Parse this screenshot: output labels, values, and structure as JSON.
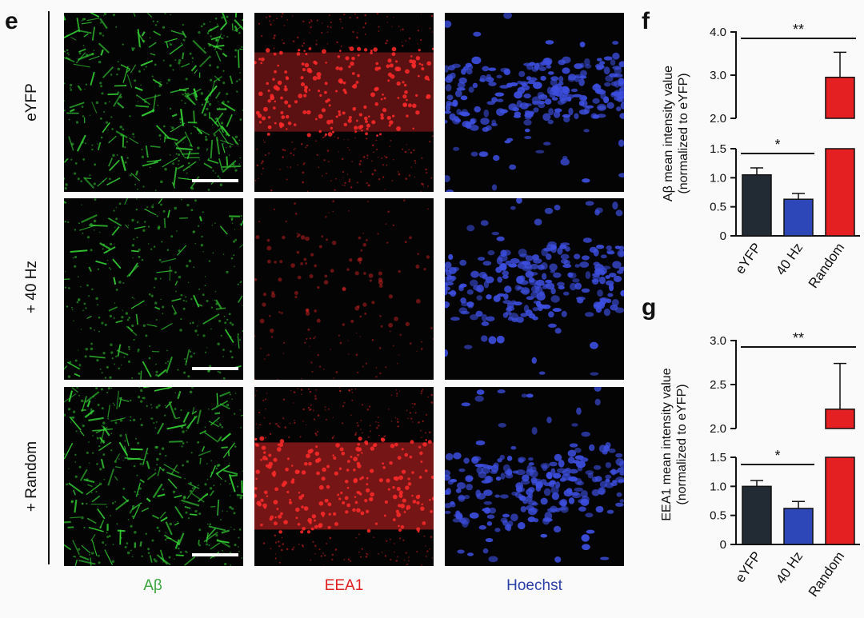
{
  "panel_labels": {
    "e": "e",
    "f": "f",
    "g": "g"
  },
  "rows": [
    "eYFP",
    "+ 40 Hz",
    "+ Random"
  ],
  "columns": [
    {
      "name": "Aβ",
      "color": "#3aa53a"
    },
    {
      "name": "EEA1",
      "color": "#e02020"
    },
    {
      "name": "Hoechst",
      "color": "#2b3fa8"
    }
  ],
  "image_colors": {
    "green": "#35d435",
    "red": "#ff2a2a",
    "blue": "#3d4fe0"
  },
  "chart_data": [
    {
      "type": "bar",
      "panel": "f",
      "ylabel_line1": "Aβ mean intensity value",
      "ylabel_line2": "(normalized to eYFP)",
      "categories": [
        "eYFP",
        "40 Hz",
        "Random"
      ],
      "values": [
        1.05,
        0.63,
        2.95
      ],
      "errors": [
        0.12,
        0.1,
        0.58
      ],
      "colors": [
        "#222a33",
        "#2e47b8",
        "#e42023"
      ],
      "axis_break": {
        "lower": [
          0,
          1.5
        ],
        "upper": [
          2.0,
          4.0
        ]
      },
      "lower_ticks": [
        "0",
        "0.5",
        "1.0",
        "1.5"
      ],
      "upper_ticks": [
        "2.0",
        "3.0",
        "4.0"
      ],
      "significance": [
        {
          "from": 0,
          "to": 1,
          "label": "*"
        },
        {
          "from": 0,
          "to": 2,
          "label": "**"
        }
      ]
    },
    {
      "type": "bar",
      "panel": "g",
      "ylabel_line1": "EEA1 mean intensity value",
      "ylabel_line2": "(normalized to eYFP)",
      "categories": [
        "eYFP",
        "40 Hz",
        "Random"
      ],
      "values": [
        1.0,
        0.62,
        2.22
      ],
      "errors": [
        0.1,
        0.12,
        0.52
      ],
      "colors": [
        "#222a33",
        "#2e47b8",
        "#e42023"
      ],
      "axis_break": {
        "lower": [
          0,
          1.5
        ],
        "upper": [
          2.0,
          3.0
        ]
      },
      "lower_ticks": [
        "0",
        "0.5",
        "1.0",
        "1.5"
      ],
      "upper_ticks": [
        "2.0",
        "2.5",
        "3.0"
      ],
      "significance": [
        {
          "from": 0,
          "to": 1,
          "label": "*"
        },
        {
          "from": 0,
          "to": 2,
          "label": "**"
        }
      ]
    }
  ]
}
